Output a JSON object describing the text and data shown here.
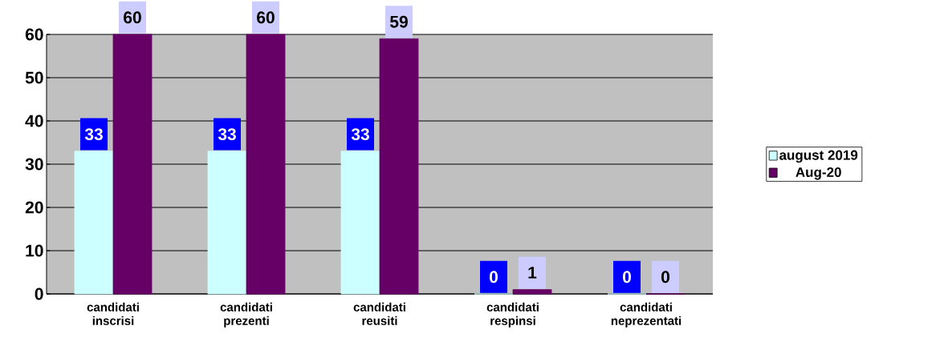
{
  "chart_data": {
    "type": "bar",
    "categories": [
      "candidati inscrisi",
      "candidati prezenti",
      "candidati reusiti",
      "candidati respinsi",
      "candidati neprezentati"
    ],
    "series": [
      {
        "name": "august 2019",
        "color": "#ccffff",
        "values": [
          33,
          33,
          33,
          0,
          0
        ]
      },
      {
        "name": "Aug-20",
        "color": "#660066",
        "values": [
          60,
          60,
          59,
          1,
          0
        ]
      }
    ],
    "ylim": [
      0,
      60
    ],
    "yticks": [
      0,
      10,
      20,
      30,
      40,
      50,
      60
    ],
    "grid": "y",
    "legend": "right",
    "data_labels": true
  }
}
